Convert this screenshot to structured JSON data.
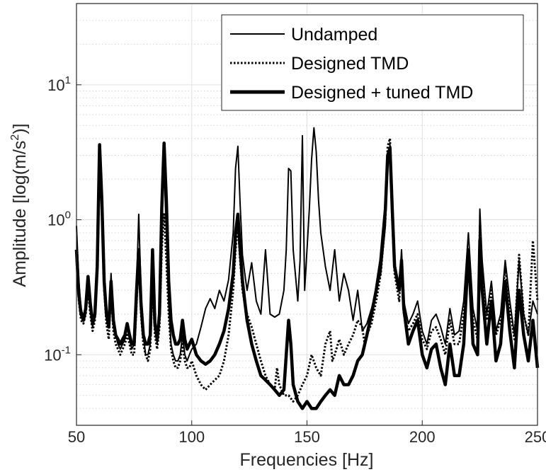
{
  "chart_data": {
    "type": "line",
    "xlabel": "Frequencies [Hz]",
    "ylabel": "Amplitude [log(m/s",
    "ylabel_sup": "2",
    "ylabel_end": ")]",
    "xlim": [
      50,
      250
    ],
    "ylim": [
      0.03,
      40
    ],
    "yscale": "log",
    "grid": true,
    "minor_grid": true,
    "legend": "top-right",
    "xticks": [
      50,
      100,
      150,
      200,
      250
    ],
    "xtick_labels": [
      "50",
      "100",
      "150",
      "200",
      "250"
    ],
    "yticks": [
      0.1,
      1,
      10
    ],
    "ytick_base": "10",
    "ytick_exps": [
      "-1",
      "0",
      "1"
    ],
    "series": [
      {
        "name": "Undamped",
        "style": "solid-thin",
        "x": [
          50,
          51,
          52,
          53,
          54,
          55,
          56,
          57,
          58,
          59,
          60,
          61,
          62,
          63,
          64,
          65,
          66,
          67,
          68,
          69,
          70,
          71,
          72,
          73,
          74,
          75,
          76,
          77,
          78,
          79,
          80,
          81,
          82,
          83,
          84,
          85,
          86,
          87,
          88,
          89,
          90,
          91,
          92,
          93,
          94,
          95,
          96,
          97,
          98,
          99,
          100,
          102,
          104,
          106,
          108,
          110,
          112,
          114,
          116,
          118,
          119,
          120,
          121,
          122,
          123,
          124,
          125,
          126,
          128,
          130,
          132,
          134,
          136,
          138,
          140,
          141,
          142,
          143,
          144,
          146,
          147,
          148,
          149,
          150,
          151,
          152,
          153,
          154,
          155,
          156,
          158,
          160,
          162,
          164,
          166,
          168,
          170,
          172,
          174,
          176,
          178,
          180,
          182,
          184,
          185,
          186,
          187,
          188,
          190,
          191,
          192,
          194,
          196,
          198,
          200,
          202,
          204,
          206,
          208,
          210,
          212,
          214,
          216,
          218,
          220,
          222,
          224,
          225,
          226,
          228,
          230,
          232,
          234,
          236,
          238,
          240,
          242,
          244,
          246,
          248,
          250
        ],
        "y": [
          0.9,
          0.35,
          0.22,
          0.19,
          0.2,
          0.35,
          0.22,
          0.16,
          0.2,
          0.5,
          3.3,
          1.4,
          0.38,
          0.2,
          0.16,
          0.4,
          0.18,
          0.14,
          0.12,
          0.11,
          0.12,
          0.13,
          0.16,
          0.13,
          0.11,
          0.12,
          0.3,
          1.1,
          0.3,
          0.14,
          0.1,
          0.1,
          0.12,
          0.6,
          0.16,
          0.12,
          0.18,
          0.9,
          2.4,
          0.8,
          0.24,
          0.12,
          0.1,
          0.09,
          0.09,
          0.1,
          0.14,
          0.1,
          0.09,
          0.1,
          0.11,
          0.12,
          0.16,
          0.22,
          0.26,
          0.22,
          0.3,
          0.25,
          0.36,
          0.8,
          2.4,
          3.5,
          1.3,
          0.55,
          0.4,
          0.3,
          0.38,
          0.48,
          0.25,
          0.2,
          0.6,
          0.2,
          0.19,
          0.2,
          0.3,
          0.6,
          2.4,
          2.3,
          0.6,
          0.25,
          0.5,
          4.2,
          0.3,
          0.6,
          1.2,
          2.8,
          4.8,
          3.2,
          1.4,
          0.8,
          0.45,
          0.3,
          0.6,
          0.25,
          0.4,
          0.3,
          0.18,
          0.3,
          0.15,
          0.17,
          0.22,
          0.3,
          0.4,
          0.9,
          2.5,
          3.6,
          1.2,
          0.5,
          0.3,
          0.6,
          0.25,
          0.17,
          0.2,
          0.25,
          0.15,
          0.12,
          0.18,
          0.2,
          0.16,
          0.12,
          0.22,
          0.14,
          0.15,
          0.25,
          0.8,
          0.22,
          0.15,
          1.2,
          0.5,
          0.2,
          0.35,
          0.15,
          0.2,
          0.5,
          0.25,
          0.14,
          0.5,
          0.2,
          0.14,
          0.25,
          0.2
        ]
      },
      {
        "name": "Designed TMD",
        "style": "dotted",
        "x": [
          50,
          51,
          52,
          53,
          54,
          55,
          56,
          57,
          58,
          59,
          60,
          61,
          62,
          63,
          64,
          65,
          66,
          67,
          68,
          69,
          70,
          71,
          72,
          73,
          74,
          75,
          76,
          77,
          78,
          79,
          80,
          81,
          82,
          83,
          84,
          85,
          86,
          87,
          88,
          89,
          90,
          91,
          92,
          93,
          94,
          95,
          96,
          97,
          98,
          99,
          100,
          102,
          104,
          106,
          108,
          110,
          112,
          114,
          116,
          118,
          119,
          120,
          121,
          122,
          123,
          124,
          126,
          128,
          130,
          132,
          134,
          136,
          137,
          138,
          140,
          142,
          144,
          146,
          148,
          150,
          152,
          154,
          156,
          158,
          160,
          161,
          162,
          164,
          166,
          168,
          170,
          172,
          174,
          175,
          176,
          178,
          180,
          182,
          184,
          185,
          186,
          187,
          188,
          190,
          191,
          192,
          194,
          196,
          198,
          200,
          202,
          204,
          206,
          208,
          210,
          212,
          214,
          216,
          218,
          220,
          222,
          224,
          225,
          226,
          228,
          230,
          232,
          234,
          236,
          238,
          240,
          242,
          244,
          246,
          248,
          250
        ],
        "y": [
          0.5,
          0.25,
          0.18,
          0.17,
          0.2,
          0.3,
          0.2,
          0.15,
          0.18,
          0.4,
          2.9,
          1.2,
          0.3,
          0.17,
          0.13,
          0.3,
          0.15,
          0.12,
          0.11,
          0.1,
          0.11,
          0.12,
          0.14,
          0.12,
          0.1,
          0.1,
          0.22,
          0.55,
          0.2,
          0.12,
          0.1,
          0.09,
          0.11,
          0.35,
          0.14,
          0.11,
          0.16,
          0.6,
          1.1,
          0.5,
          0.2,
          0.11,
          0.09,
          0.08,
          0.08,
          0.09,
          0.12,
          0.09,
          0.08,
          0.08,
          0.09,
          0.07,
          0.06,
          0.055,
          0.06,
          0.065,
          0.07,
          0.09,
          0.14,
          0.3,
          0.6,
          0.9,
          0.5,
          0.3,
          0.24,
          0.2,
          0.16,
          0.12,
          0.09,
          0.07,
          0.06,
          0.055,
          0.08,
          0.06,
          0.05,
          0.05,
          0.045,
          0.05,
          0.06,
          0.07,
          0.1,
          0.08,
          0.07,
          0.12,
          0.15,
          0.09,
          0.1,
          0.13,
          0.1,
          0.12,
          0.14,
          0.18,
          0.16,
          0.12,
          0.14,
          0.17,
          0.25,
          0.4,
          1.0,
          3.5,
          4.0,
          1.0,
          0.4,
          0.25,
          0.5,
          0.2,
          0.15,
          0.17,
          0.2,
          0.13,
          0.11,
          0.15,
          0.16,
          0.13,
          0.1,
          0.18,
          0.12,
          0.12,
          0.2,
          0.6,
          0.18,
          0.13,
          0.9,
          0.4,
          0.18,
          0.3,
          0.14,
          0.18,
          0.45,
          0.22,
          0.13,
          0.55,
          0.2,
          0.14,
          0.7,
          0.25
        ]
      },
      {
        "name": "Designed + tuned TMD",
        "style": "solid-thick",
        "x": [
          50,
          51,
          52,
          53,
          54,
          55,
          56,
          57,
          58,
          59,
          60,
          61,
          62,
          63,
          64,
          65,
          66,
          67,
          68,
          69,
          70,
          71,
          72,
          73,
          74,
          75,
          76,
          77,
          78,
          79,
          80,
          81,
          82,
          83,
          84,
          85,
          86,
          87,
          88,
          89,
          90,
          91,
          92,
          93,
          94,
          95,
          96,
          97,
          98,
          99,
          100,
          102,
          104,
          106,
          108,
          110,
          112,
          114,
          116,
          118,
          119,
          120,
          121,
          122,
          123,
          124,
          126,
          128,
          130,
          132,
          134,
          136,
          138,
          140,
          141,
          142,
          143,
          144,
          146,
          148,
          150,
          152,
          154,
          156,
          158,
          160,
          162,
          164,
          166,
          168,
          170,
          172,
          174,
          176,
          178,
          180,
          182,
          184,
          185,
          186,
          187,
          188,
          190,
          191,
          192,
          194,
          196,
          198,
          200,
          202,
          204,
          206,
          208,
          210,
          212,
          214,
          216,
          218,
          220,
          222,
          224,
          225,
          226,
          228,
          230,
          232,
          234,
          236,
          238,
          240,
          242,
          244,
          246,
          248,
          250
        ],
        "y": [
          0.6,
          0.28,
          0.2,
          0.18,
          0.22,
          0.38,
          0.24,
          0.17,
          0.2,
          0.45,
          3.6,
          1.4,
          0.35,
          0.2,
          0.16,
          0.35,
          0.18,
          0.14,
          0.13,
          0.12,
          0.13,
          0.14,
          0.17,
          0.14,
          0.12,
          0.12,
          0.28,
          0.6,
          0.24,
          0.14,
          0.12,
          0.12,
          0.14,
          0.6,
          0.17,
          0.13,
          0.2,
          1.2,
          3.7,
          1.4,
          0.35,
          0.18,
          0.14,
          0.12,
          0.12,
          0.13,
          0.18,
          0.13,
          0.11,
          0.12,
          0.13,
          0.1,
          0.09,
          0.085,
          0.09,
          0.1,
          0.12,
          0.15,
          0.22,
          0.4,
          0.8,
          1.1,
          0.6,
          0.35,
          0.25,
          0.18,
          0.12,
          0.09,
          0.07,
          0.065,
          0.06,
          0.055,
          0.05,
          0.055,
          0.1,
          0.18,
          0.12,
          0.06,
          0.045,
          0.04,
          0.045,
          0.04,
          0.04,
          0.045,
          0.05,
          0.055,
          0.05,
          0.07,
          0.06,
          0.06,
          0.07,
          0.09,
          0.1,
          0.14,
          0.2,
          0.3,
          0.5,
          1.2,
          3.0,
          3.4,
          1.2,
          0.45,
          0.3,
          0.5,
          0.22,
          0.12,
          0.15,
          0.18,
          0.1,
          0.08,
          0.11,
          0.12,
          0.08,
          0.06,
          0.12,
          0.07,
          0.07,
          0.12,
          0.6,
          0.12,
          0.1,
          0.7,
          0.3,
          0.12,
          0.25,
          0.09,
          0.12,
          0.35,
          0.15,
          0.08,
          0.3,
          0.14,
          0.09,
          0.18,
          0.08
        ]
      }
    ]
  }
}
